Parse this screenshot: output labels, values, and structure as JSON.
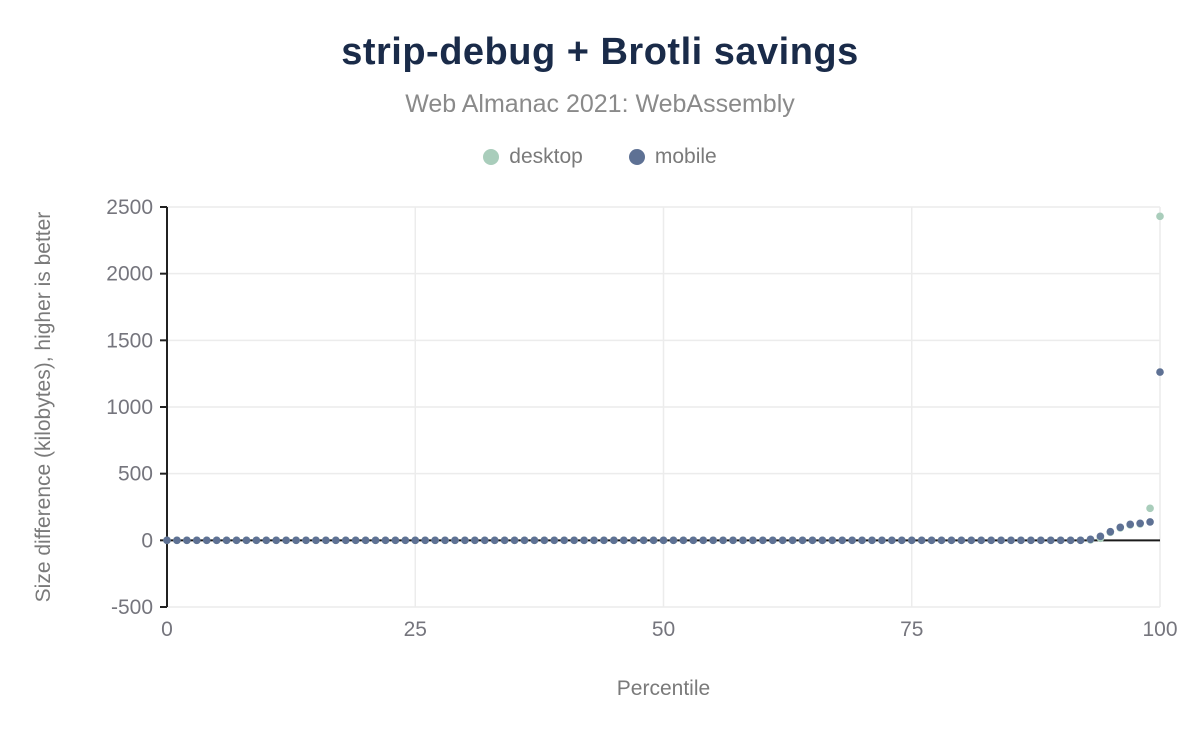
{
  "chart_data": {
    "type": "scatter",
    "title": "strip-debug + Brotli savings",
    "subtitle": "Web Almanac 2021: WebAssembly",
    "xlabel": "Percentile",
    "ylabel": "Size difference (kilobytes), higher is better",
    "xlim": [
      0,
      100
    ],
    "ylim": [
      -500,
      2500
    ],
    "x_ticks": [
      0,
      25,
      50,
      75,
      100
    ],
    "y_ticks": [
      -500,
      0,
      500,
      1000,
      1500,
      2000,
      2500
    ],
    "grid": true,
    "zero_line": true,
    "legend_position": "top-center",
    "x": {
      "start": 0,
      "step": 1,
      "count": 101
    },
    "series": [
      {
        "name": "desktop",
        "color": "#a9cdbb",
        "values": [
          0,
          0,
          0,
          0,
          0,
          0,
          0,
          0,
          0,
          0,
          0,
          0,
          0,
          0,
          0,
          0,
          0,
          0,
          0,
          0,
          0,
          0,
          0,
          0,
          0,
          0,
          0,
          0,
          0,
          0,
          0,
          0,
          0,
          0,
          0,
          0,
          0,
          0,
          0,
          0,
          0,
          0,
          0,
          0,
          0,
          0,
          0,
          0,
          0,
          0,
          0,
          0,
          0,
          0,
          0,
          0,
          0,
          0,
          0,
          0,
          0,
          0,
          0,
          0,
          0,
          0,
          0,
          0,
          0,
          0,
          0,
          0,
          0,
          0,
          0,
          0,
          0,
          0,
          0,
          0,
          0,
          0,
          0,
          0,
          0,
          0,
          0,
          0,
          0,
          0,
          0,
          0,
          0,
          3,
          15,
          60,
          93,
          115,
          123,
          240,
          2430
        ]
      },
      {
        "name": "mobile",
        "color": "#5e7194",
        "values": [
          0,
          0,
          0,
          0,
          0,
          0,
          0,
          0,
          0,
          0,
          0,
          0,
          0,
          0,
          0,
          0,
          0,
          0,
          0,
          0,
          0,
          0,
          0,
          0,
          0,
          0,
          0,
          0,
          0,
          0,
          0,
          0,
          0,
          0,
          0,
          0,
          0,
          0,
          0,
          0,
          0,
          0,
          0,
          0,
          0,
          0,
          0,
          0,
          0,
          0,
          0,
          0,
          0,
          0,
          0,
          0,
          0,
          0,
          0,
          0,
          0,
          0,
          0,
          0,
          0,
          0,
          0,
          0,
          0,
          0,
          0,
          0,
          0,
          0,
          0,
          0,
          0,
          0,
          0,
          0,
          0,
          0,
          0,
          0,
          0,
          0,
          0,
          0,
          0,
          0,
          0,
          0,
          0,
          8,
          30,
          65,
          98,
          120,
          128,
          138,
          1262
        ]
      }
    ],
    "colors": {
      "title": "#1a2b49",
      "subtitle": "#8a8a8a",
      "axis_text": "#75757d",
      "grid": "#ececec",
      "axis_line": "#212121",
      "desktop": "#a9cdbb",
      "mobile": "#5e7194"
    }
  }
}
